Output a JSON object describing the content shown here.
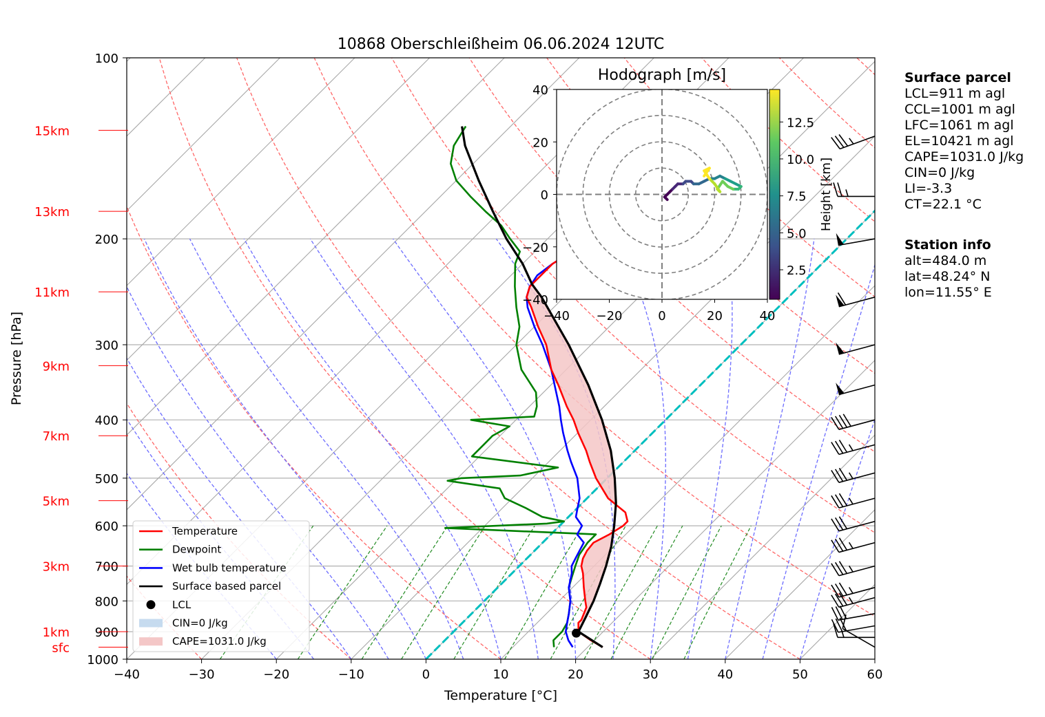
{
  "chart_data": {
    "type": "skew-t log-p sounding",
    "title": "10868 Oberschleißheim 06.06.2024 12UTC",
    "xlabel": "Temperature [°C]",
    "ylabel": "Pressure [hPa]",
    "xlim": [
      -40,
      60
    ],
    "ylim_hPa": [
      1000,
      100
    ],
    "y_scale": "log",
    "x_ticks": [
      -40,
      -30,
      -20,
      -10,
      0,
      10,
      20,
      30,
      40,
      50,
      60
    ],
    "y_ticks": [
      100,
      200,
      300,
      400,
      500,
      600,
      700,
      800,
      900,
      1000
    ],
    "height_markers": [
      {
        "label": "sfc",
        "p": 955
      },
      {
        "label": "1km",
        "p": 900
      },
      {
        "label": "3km",
        "p": 700
      },
      {
        "label": "5km",
        "p": 545
      },
      {
        "label": "7km",
        "p": 425
      },
      {
        "label": "9km",
        "p": 325
      },
      {
        "label": "11km",
        "p": 245
      },
      {
        "label": "13km",
        "p": 180
      },
      {
        "label": "15km",
        "p": 132
      }
    ],
    "legend_position": "lower-left",
    "legend": [
      {
        "label": "Temperature",
        "kind": "line",
        "color": "#ff0000"
      },
      {
        "label": "Dewpoint",
        "kind": "line",
        "color": "#008000"
      },
      {
        "label": "Wet bulb temperature",
        "kind": "line",
        "color": "#0000ff"
      },
      {
        "label": "Surface based parcel",
        "kind": "line",
        "color": "#000000"
      },
      {
        "label": "LCL",
        "kind": "dot",
        "color": "#000000"
      },
      {
        "label": "CIN=0 J/kg",
        "kind": "patch",
        "color": "#c6dbef"
      },
      {
        "label": "CAPE=1031.0 J/kg",
        "kind": "patch",
        "color": "#f4c7c7"
      }
    ],
    "temperature": [
      [
        955,
        22.0
      ],
      [
        930,
        19.5
      ],
      [
        900,
        16.7
      ],
      [
        870,
        15.5
      ],
      [
        860,
        15.5
      ],
      [
        820,
        14.5
      ],
      [
        800,
        13.5
      ],
      [
        760,
        11.5
      ],
      [
        720,
        9.5
      ],
      [
        700,
        8.3
      ],
      [
        680,
        7.5
      ],
      [
        660,
        7.0
      ],
      [
        640,
        6.8
      ],
      [
        620,
        7.8
      ],
      [
        600,
        8.5
      ],
      [
        590,
        8.5
      ],
      [
        570,
        7.0
      ],
      [
        540,
        2.8
      ],
      [
        500,
        -1.5
      ],
      [
        470,
        -4.5
      ],
      [
        450,
        -6.5
      ],
      [
        420,
        -10.0
      ],
      [
        400,
        -12.3
      ],
      [
        380,
        -15.0
      ],
      [
        350,
        -19.0
      ],
      [
        330,
        -22.0
      ],
      [
        300,
        -26.0
      ],
      [
        280,
        -29.5
      ],
      [
        260,
        -33.0
      ],
      [
        250,
        -35.0
      ],
      [
        240,
        -36.0
      ],
      [
        230,
        -36.0
      ],
      [
        220,
        -36.0
      ],
      [
        210,
        -35.0
      ],
      [
        200,
        -34.5
      ],
      [
        190,
        -32.0
      ],
      [
        180,
        -31.0
      ],
      [
        170,
        -30.5
      ],
      [
        160,
        -29.0
      ],
      [
        150,
        -28.0
      ],
      [
        140,
        -27.0
      ],
      [
        130,
        -26.5
      ]
    ],
    "dewpoint": [
      [
        955,
        15.5
      ],
      [
        930,
        14.5
      ],
      [
        900,
        14.5
      ],
      [
        870,
        14.0
      ],
      [
        840,
        13.0
      ],
      [
        800,
        11.5
      ],
      [
        760,
        9.5
      ],
      [
        730,
        8.5
      ],
      [
        700,
        7.5
      ],
      [
        670,
        6.5
      ],
      [
        640,
        6.0
      ],
      [
        620,
        6.0
      ],
      [
        605,
        -15.0
      ],
      [
        595,
        -2.0
      ],
      [
        590,
        0.0
      ],
      [
        580,
        -3.5
      ],
      [
        560,
        -7.0
      ],
      [
        540,
        -11.0
      ],
      [
        520,
        -13.0
      ],
      [
        505,
        -21.0
      ],
      [
        500,
        -19.5
      ],
      [
        495,
        -12.0
      ],
      [
        480,
        -8.0
      ],
      [
        460,
        -21.0
      ],
      [
        440,
        -21.0
      ],
      [
        425,
        -21.0
      ],
      [
        410,
        -20.0
      ],
      [
        400,
        -26.0
      ],
      [
        395,
        -18.0
      ],
      [
        380,
        -19.0
      ],
      [
        360,
        -21.0
      ],
      [
        330,
        -26.0
      ],
      [
        300,
        -30.0
      ],
      [
        280,
        -32.0
      ],
      [
        260,
        -35.0
      ],
      [
        240,
        -38.0
      ],
      [
        220,
        -41.0
      ],
      [
        210,
        -42.0
      ],
      [
        200,
        -45.0
      ],
      [
        190,
        -48.0
      ],
      [
        180,
        -52.0
      ],
      [
        170,
        -56.0
      ],
      [
        160,
        -60.0
      ],
      [
        150,
        -63.0
      ],
      [
        140,
        -65.0
      ],
      [
        130,
        -66.0
      ]
    ],
    "wet_bulb": [
      [
        955,
        18.0
      ],
      [
        930,
        16.5
      ],
      [
        900,
        15.0
      ],
      [
        870,
        14.0
      ],
      [
        840,
        13.0
      ],
      [
        800,
        11.5
      ],
      [
        760,
        9.5
      ],
      [
        720,
        8.0
      ],
      [
        700,
        7.0
      ],
      [
        680,
        6.5
      ],
      [
        660,
        6.0
      ],
      [
        640,
        5.5
      ],
      [
        620,
        3.5
      ],
      [
        600,
        3.0
      ],
      [
        580,
        1.0
      ],
      [
        560,
        0.0
      ],
      [
        540,
        -1.0
      ],
      [
        500,
        -4.0
      ],
      [
        470,
        -7.0
      ],
      [
        450,
        -9.0
      ],
      [
        420,
        -12.0
      ],
      [
        400,
        -14.0
      ],
      [
        380,
        -16.0
      ],
      [
        350,
        -19.5
      ],
      [
        330,
        -22.0
      ],
      [
        300,
        -26.5
      ],
      [
        280,
        -30.0
      ],
      [
        260,
        -33.5
      ],
      [
        250,
        -35.0
      ],
      [
        240,
        -36.0
      ],
      [
        230,
        -36.5
      ],
      [
        220,
        -36.0
      ],
      [
        210,
        -35.0
      ],
      [
        200,
        -35.0
      ],
      [
        190,
        -32.5
      ],
      [
        180,
        -31.5
      ],
      [
        170,
        -31.0
      ],
      [
        160,
        -29.5
      ],
      [
        150,
        -28.5
      ],
      [
        140,
        -27.5
      ],
      [
        130,
        -27.0
      ]
    ],
    "surface_parcel": [
      [
        955,
        22.0
      ],
      [
        900,
        16.7
      ],
      [
        850,
        15.7
      ],
      [
        800,
        14.6
      ],
      [
        750,
        13.2
      ],
      [
        700,
        11.6
      ],
      [
        650,
        9.7
      ],
      [
        600,
        7.3
      ],
      [
        550,
        4.5
      ],
      [
        500,
        1.0
      ],
      [
        450,
        -3.2
      ],
      [
        400,
        -8.5
      ],
      [
        350,
        -15.0
      ],
      [
        300,
        -23.0
      ],
      [
        250,
        -33.0
      ],
      [
        238,
        -36.0
      ],
      [
        220,
        -40.0
      ],
      [
        200,
        -45.5
      ],
      [
        180,
        -51.0
      ],
      [
        160,
        -57.0
      ],
      [
        140,
        -63.5
      ],
      [
        130,
        -66.5
      ]
    ],
    "lcl": {
      "p": 905,
      "t": 16.6
    },
    "cin_label": "CIN=0 J/kg",
    "cape_label": "CAPE=1031.0 J/kg",
    "zero_isotherm_color": "#00bfbf",
    "wind_barbs": [
      {
        "p": 955,
        "speed_kt": 10,
        "dir": 300
      },
      {
        "p": 920,
        "speed_kt": 15,
        "dir": 270
      },
      {
        "p": 880,
        "speed_kt": 30,
        "dir": 260
      },
      {
        "p": 840,
        "speed_kt": 30,
        "dir": 260
      },
      {
        "p": 790,
        "speed_kt": 35,
        "dir": 255
      },
      {
        "p": 760,
        "speed_kt": 35,
        "dir": 255
      },
      {
        "p": 700,
        "speed_kt": 35,
        "dir": 255
      },
      {
        "p": 640,
        "speed_kt": 35,
        "dir": 255
      },
      {
        "p": 590,
        "speed_kt": 30,
        "dir": 255
      },
      {
        "p": 540,
        "speed_kt": 35,
        "dir": 255
      },
      {
        "p": 490,
        "speed_kt": 35,
        "dir": 255
      },
      {
        "p": 440,
        "speed_kt": 35,
        "dir": 255
      },
      {
        "p": 400,
        "speed_kt": 40,
        "dir": 255
      },
      {
        "p": 350,
        "speed_kt": 50,
        "dir": 255
      },
      {
        "p": 300,
        "speed_kt": 50,
        "dir": 255
      },
      {
        "p": 250,
        "speed_kt": 60,
        "dir": 255
      },
      {
        "p": 200,
        "speed_kt": 50,
        "dir": 260
      },
      {
        "p": 170,
        "speed_kt": 25,
        "dir": 270
      },
      {
        "p": 135,
        "speed_kt": 35,
        "dir": 250
      }
    ],
    "hodograph": {
      "title": "Hodograph [m/s]",
      "xlim": [
        -40,
        40
      ],
      "ylim": [
        -40,
        40
      ],
      "ticks": [
        -40,
        -20,
        0,
        20,
        40
      ],
      "rings": [
        10,
        20,
        30,
        40
      ],
      "colorbar_label": "Height [km]",
      "colorbar_ticks": [
        2.5,
        5.0,
        7.5,
        10.0,
        12.5
      ],
      "colorbar_range": [
        0.5,
        14.7
      ],
      "points": [
        [
          2,
          -2,
          0.5
        ],
        [
          1,
          -1,
          0.8
        ],
        [
          2,
          0,
          1.0
        ],
        [
          3,
          1,
          1.5
        ],
        [
          4,
          2,
          2.0
        ],
        [
          5,
          3,
          2.5
        ],
        [
          6,
          4,
          3.0
        ],
        [
          8,
          4,
          3.5
        ],
        [
          9,
          5,
          4.0
        ],
        [
          11,
          5,
          4.5
        ],
        [
          12,
          4,
          5.0
        ],
        [
          14,
          4,
          5.5
        ],
        [
          16,
          5,
          6.0
        ],
        [
          18,
          6,
          6.5
        ],
        [
          20,
          6,
          7.0
        ],
        [
          22,
          7,
          7.5
        ],
        [
          24,
          6,
          8.0
        ],
        [
          26,
          5,
          8.5
        ],
        [
          28,
          4,
          9.0
        ],
        [
          30,
          3,
          9.5
        ],
        [
          29,
          2,
          10.0
        ],
        [
          27,
          2,
          10.5
        ],
        [
          25,
          3,
          11.0
        ],
        [
          23,
          5,
          11.5
        ],
        [
          21,
          2,
          12.0
        ],
        [
          22,
          1,
          12.5
        ],
        [
          20,
          4,
          13.0
        ],
        [
          18,
          6,
          13.5
        ],
        [
          16,
          9,
          14.0
        ],
        [
          18,
          10,
          14.3
        ],
        [
          16,
          7,
          14.5
        ]
      ]
    }
  },
  "surface_parcel_box": {
    "heading": "Surface parcel",
    "lines": [
      "LCL=911 m agl",
      "CCL=1001 m agl",
      "LFC=1061 m agl",
      "EL=10421 m agl",
      "CAPE=1031.0 J/kg",
      "CIN=0 J/kg",
      "LI=-3.3",
      "CT=22.1 °C"
    ]
  },
  "station_info_box": {
    "heading": "Station info",
    "lines": [
      "alt=484.0 m",
      "lat=48.24° N",
      "lon=11.55° E"
    ]
  }
}
